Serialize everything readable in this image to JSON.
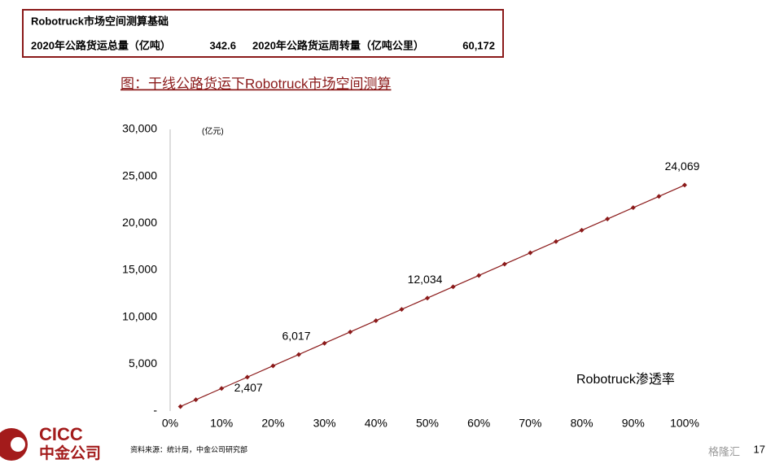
{
  "table": {
    "title": "Robotruck市场空间测算基础",
    "rows": [
      [
        "2020年公路货运总量（亿吨）",
        "342.6",
        "2020年公路货运周转量（亿吨公里）",
        "60,172"
      ]
    ]
  },
  "chart_data": {
    "type": "line",
    "title": "图：干线公路货运下Robotruck市场空间测算",
    "unit": "(亿元)",
    "x": [
      2,
      5,
      10,
      15,
      20,
      25,
      30,
      35,
      40,
      45,
      50,
      55,
      60,
      65,
      70,
      75,
      80,
      85,
      90,
      95,
      100
    ],
    "series": [
      {
        "name": "Robotruck渗透率",
        "color": "#8b1a1a",
        "values": [
          481,
          1203,
          2407,
          3610,
          4814,
          6017,
          7221,
          8424,
          9628,
          10831,
          12034,
          13238,
          14441,
          15645,
          16848,
          18052,
          19255,
          20459,
          21662,
          22866,
          24069
        ],
        "value_labels": [
          null,
          null,
          "2,407",
          null,
          null,
          "6,017",
          null,
          null,
          null,
          null,
          "12,034",
          null,
          null,
          null,
          null,
          null,
          null,
          null,
          null,
          null,
          "24,069"
        ]
      }
    ],
    "xlim": [
      0,
      100
    ],
    "xticks": [
      {
        "value": 0,
        "label": "0%"
      },
      {
        "value": 10,
        "label": "10%"
      },
      {
        "value": 20,
        "label": "20%"
      },
      {
        "value": 30,
        "label": "30%"
      },
      {
        "value": 40,
        "label": "40%"
      },
      {
        "value": 50,
        "label": "50%"
      },
      {
        "value": 60,
        "label": "60%"
      },
      {
        "value": 70,
        "label": "70%"
      },
      {
        "value": 80,
        "label": "80%"
      },
      {
        "value": 90,
        "label": "90%"
      },
      {
        "value": 100,
        "label": "100%"
      }
    ],
    "ylim": [
      0,
      30000
    ],
    "yticks": [
      {
        "value": 0,
        "label": "-"
      },
      {
        "value": 5000,
        "label": "5,000"
      },
      {
        "value": 10000,
        "label": "10,000"
      },
      {
        "value": 15000,
        "label": "15,000"
      },
      {
        "value": 20000,
        "label": "20,000"
      },
      {
        "value": 25000,
        "label": "25,000"
      },
      {
        "value": 30000,
        "label": "30,000"
      }
    ]
  },
  "footer": {
    "source": "资料来源：统计局，中金公司研究部",
    "logo": "CICC",
    "company": "中金公司",
    "page": "17",
    "watermark": "格隆汇"
  }
}
